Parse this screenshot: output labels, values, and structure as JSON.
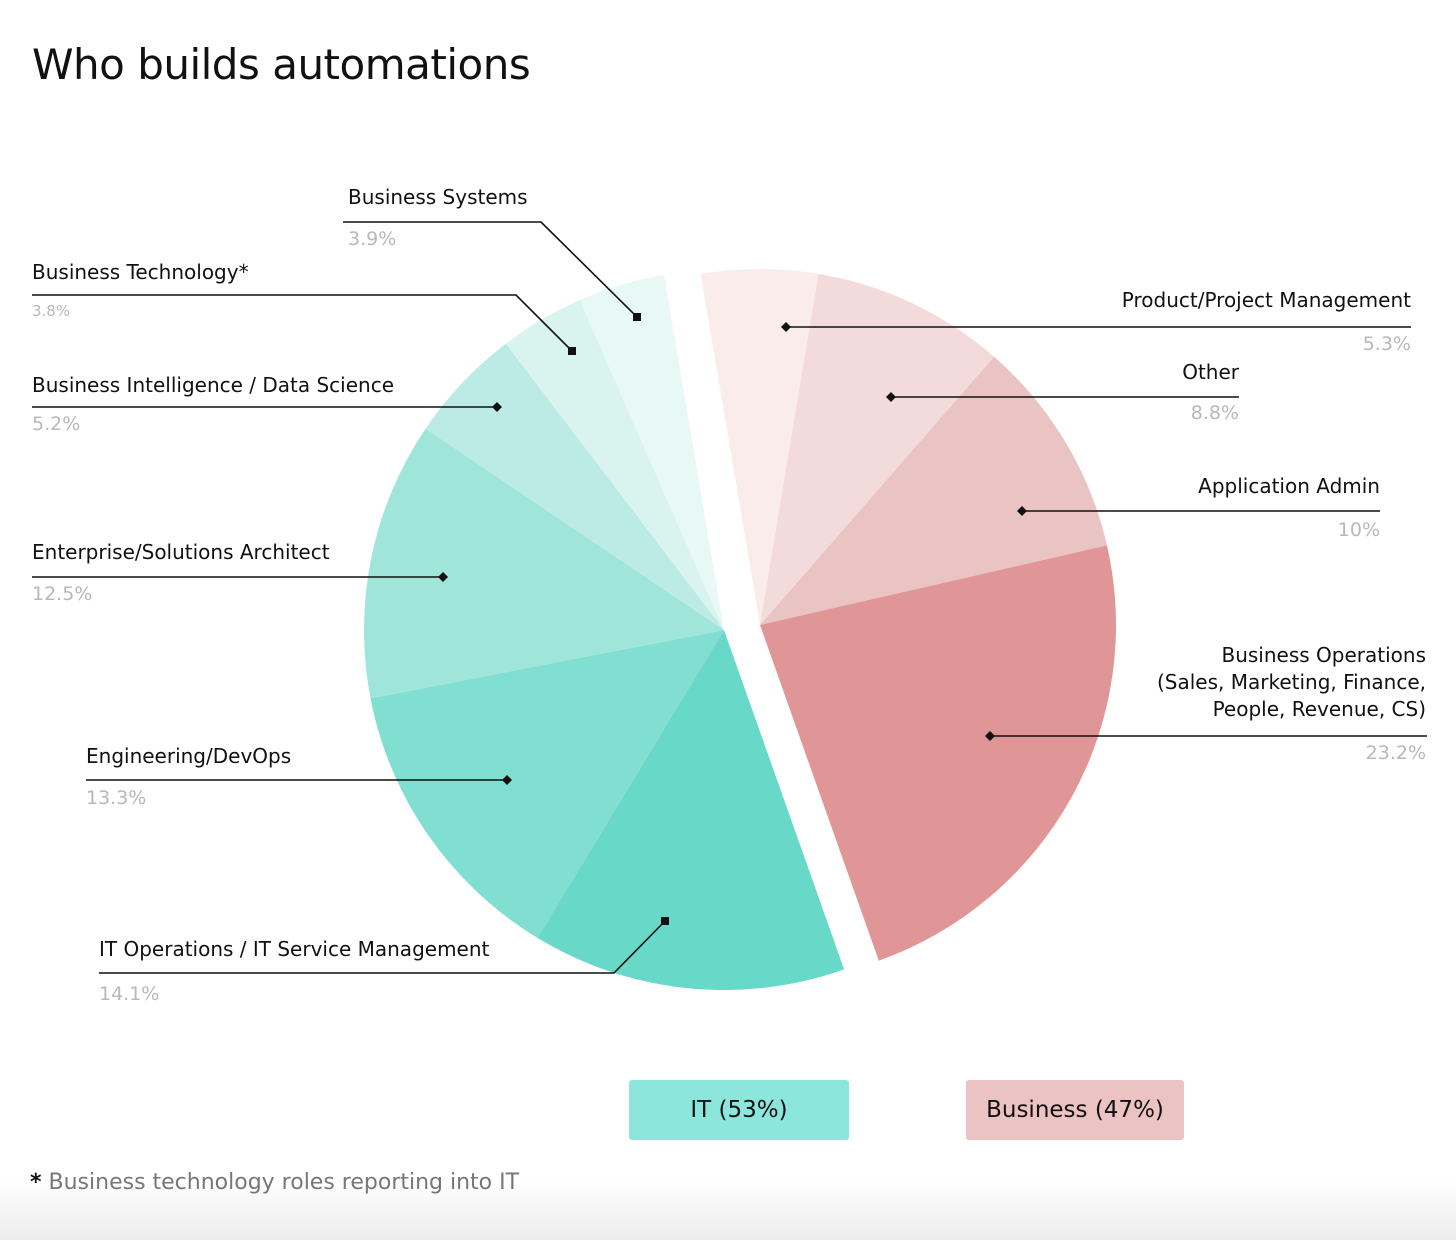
{
  "title": "Who builds automations",
  "chart_data": {
    "type": "pie",
    "title": "Who builds automations",
    "groups": [
      {
        "name": "IT (53%)",
        "color": "#8ce6dc"
      },
      {
        "name": "Business (47%)",
        "color": "#ebc3c3"
      }
    ],
    "slices": [
      {
        "label": "Product/Project Management",
        "value": 5.3,
        "pct": "5.3%",
        "group": "Business",
        "color": "#fbecec"
      },
      {
        "label": "Other",
        "value": 8.8,
        "pct": "8.8%",
        "group": "Business",
        "color": "#f3dbdc"
      },
      {
        "label": "Application Admin",
        "value": 10,
        "pct": "10%",
        "group": "Business",
        "color": "#eac3c3"
      },
      {
        "label": "Business Operations (Sales, Marketing, Finance, People, Revenue, CS)",
        "label_lines": [
          "Business Operations",
          "(Sales, Marketing, Finance,",
          "People, Revenue, CS)"
        ],
        "value": 23.2,
        "pct": "23.2%",
        "group": "Business",
        "color": "#e09596"
      },
      {
        "label": "IT Operations / IT Service Management",
        "value": 14.1,
        "pct": "14.1%",
        "group": "IT",
        "color": "#68d8c8"
      },
      {
        "label": "Engineering/DevOps",
        "value": 13.3,
        "pct": "13.3%",
        "group": "IT",
        "color": "#80dfd0"
      },
      {
        "label": "Enterprise/Solutions Architect",
        "value": 12.5,
        "pct": "12.5%",
        "group": "IT",
        "color": "#9fe5da"
      },
      {
        "label": "Business Intelligence / Data Science",
        "value": 5.2,
        "pct": "5.2%",
        "group": "IT",
        "color": "#bbebe4"
      },
      {
        "label": "Business Technology*",
        "value": 3.8,
        "pct": "3.8%",
        "group": "IT",
        "color": "#d9f3ef"
      },
      {
        "label": "Business Systems",
        "value": 3.9,
        "pct": "3.9%",
        "group": "IT",
        "color": "#e7f8f5"
      }
    ],
    "legend_placement": "bottom"
  },
  "footnote": {
    "mark": "*",
    "text": "Business technology roles reporting into IT"
  }
}
